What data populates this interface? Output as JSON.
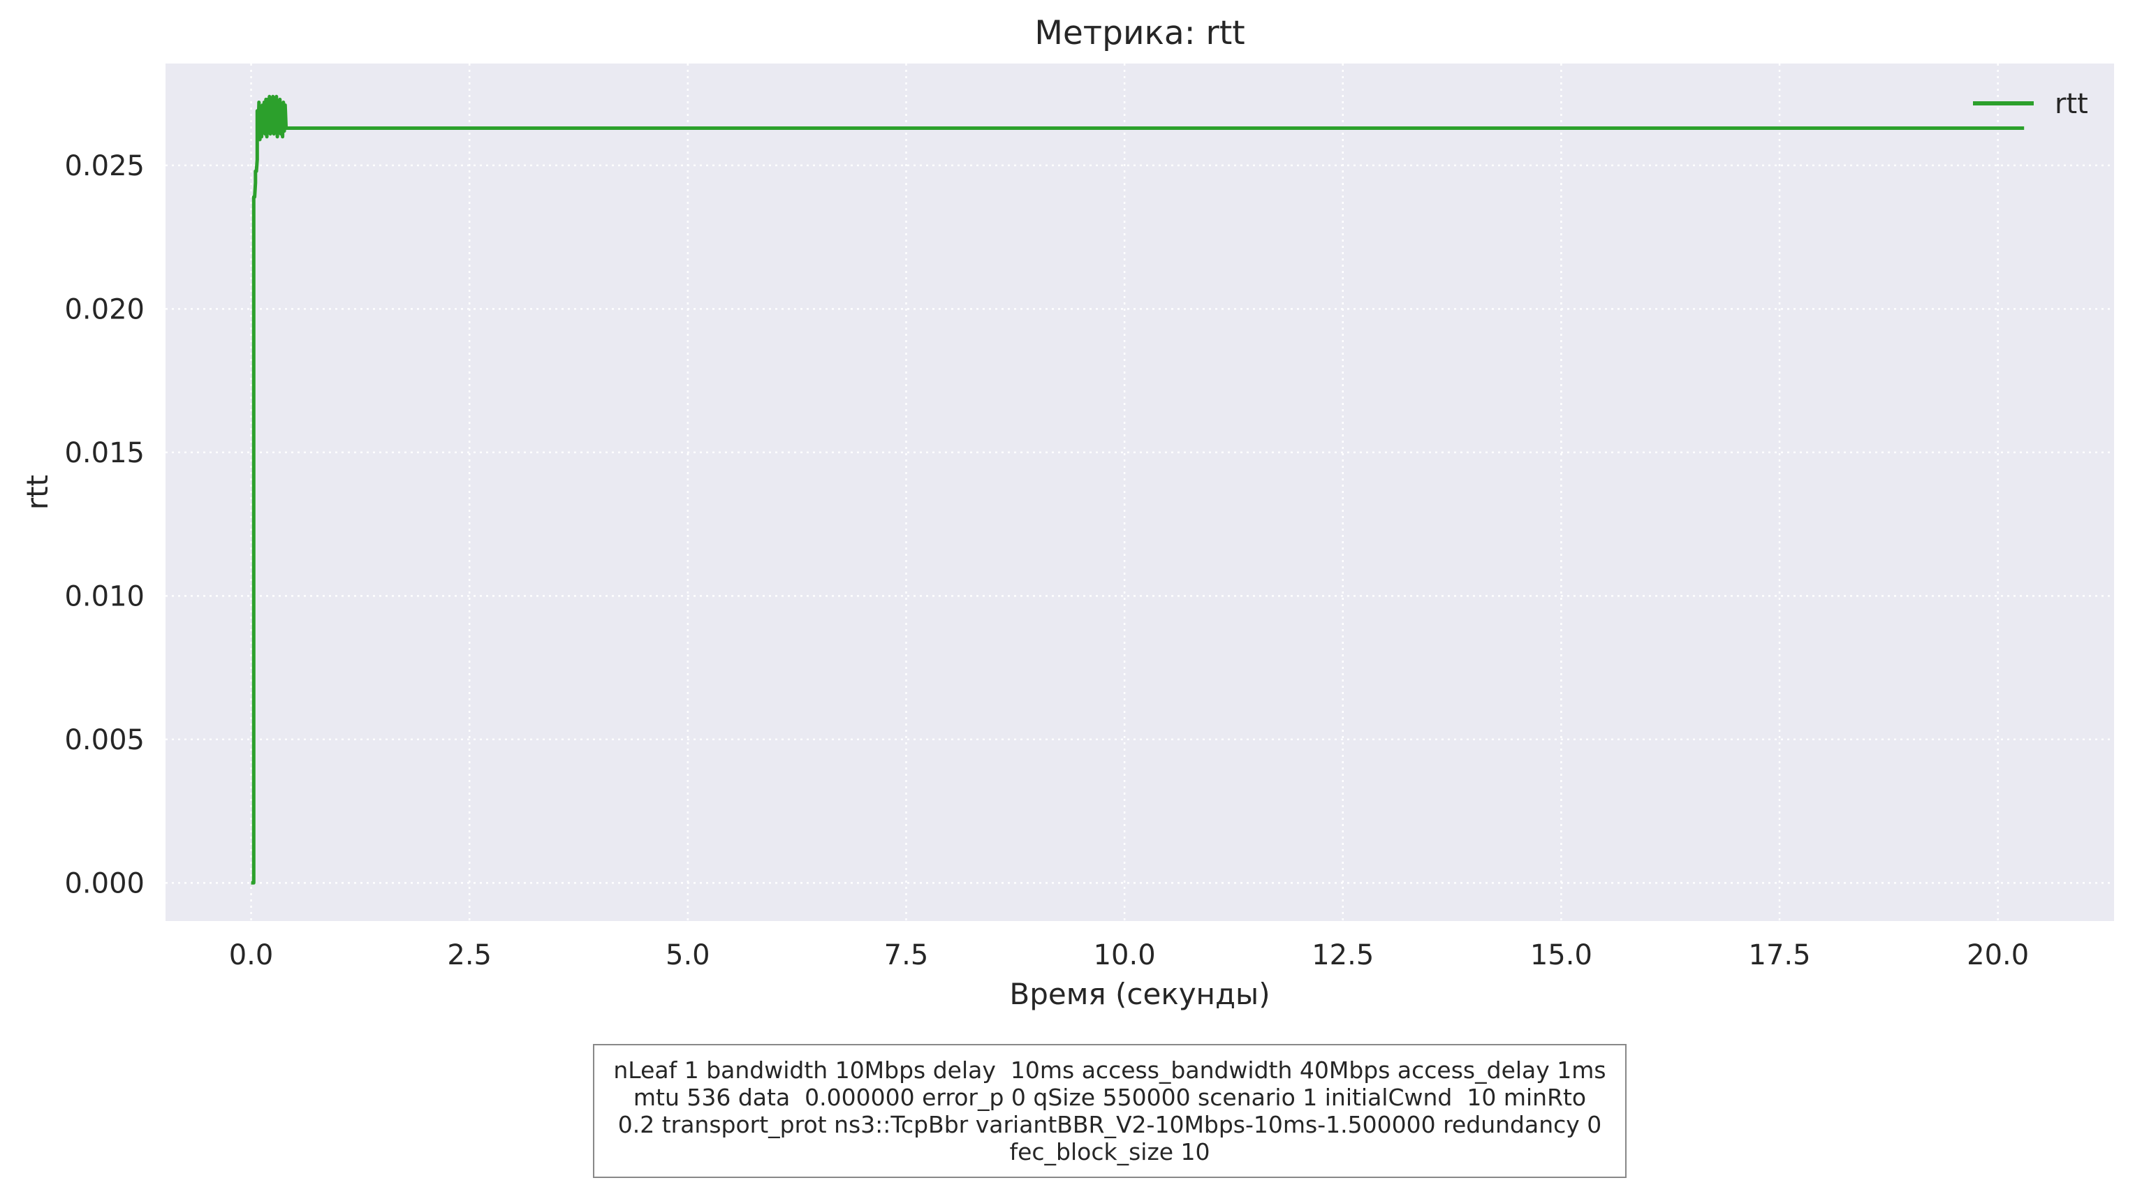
{
  "chart_data": {
    "type": "line",
    "title": "Метрика: rtt",
    "xlabel": "Время (секунды)",
    "ylabel": "rtt",
    "xlim": [
      -0.98,
      21.33
    ],
    "ylim": [
      -0.00133,
      0.02855
    ],
    "x_ticks": [
      0,
      2.5,
      5,
      7.5,
      10,
      12.5,
      15,
      17.5,
      20
    ],
    "x_tick_labels": [
      "0.0",
      "2.5",
      "5.0",
      "7.5",
      "10.0",
      "12.5",
      "15.0",
      "17.5",
      "20.0"
    ],
    "y_ticks": [
      0,
      0.005,
      0.01,
      0.015,
      0.02,
      0.025
    ],
    "y_tick_labels": [
      "0.000",
      "0.005",
      "0.010",
      "0.015",
      "0.020",
      "0.025"
    ],
    "grid": true,
    "legend_position": "top-right",
    "background_color": "#eaeaf2",
    "series": [
      {
        "name": "rtt",
        "color": "#2ca02c",
        "x": [
          0.0,
          0.03,
          0.03,
          0.04,
          0.05,
          0.05,
          0.06,
          0.07,
          0.07,
          0.08,
          0.09,
          0.1,
          0.11,
          0.12,
          0.13,
          0.14,
          0.15,
          0.16,
          0.17,
          0.18,
          0.19,
          0.2,
          0.21,
          0.22,
          0.23,
          0.24,
          0.25,
          0.26,
          0.27,
          0.28,
          0.29,
          0.3,
          0.31,
          0.32,
          0.33,
          0.34,
          0.35,
          0.36,
          0.37,
          0.38,
          0.39,
          0.4,
          0.41,
          0.42,
          0.43,
          1.0,
          5.0,
          10.0,
          15.0,
          20.3
        ],
        "y": [
          0.0,
          0.0,
          0.0239,
          0.0239,
          0.0244,
          0.0248,
          0.0248,
          0.0252,
          0.0269,
          0.0261,
          0.0272,
          0.0259,
          0.027,
          0.026,
          0.0271,
          0.0262,
          0.0272,
          0.0261,
          0.0273,
          0.026,
          0.0273,
          0.0262,
          0.0274,
          0.0261,
          0.0272,
          0.0262,
          0.0274,
          0.0261,
          0.0273,
          0.0262,
          0.0274,
          0.026,
          0.0272,
          0.0262,
          0.0273,
          0.0261,
          0.0271,
          0.026,
          0.0272,
          0.0262,
          0.0271,
          0.0263,
          0.0263,
          0.0263,
          0.0263,
          0.0263,
          0.0263,
          0.0263,
          0.0263,
          0.0263
        ]
      }
    ]
  },
  "params_box": {
    "lines": [
      "nLeaf 1 bandwidth 10Mbps delay  10ms access_bandwidth 40Mbps access_delay 1ms",
      "mtu 536 data  0.000000 error_p 0 qSize 550000 scenario 1 initialCwnd  10 minRto",
      "0.2 transport_prot ns3::TcpBbr variantBBR_V2-10Mbps-10ms-1.500000 redundancy 0",
      "fec_block_size 10"
    ]
  }
}
